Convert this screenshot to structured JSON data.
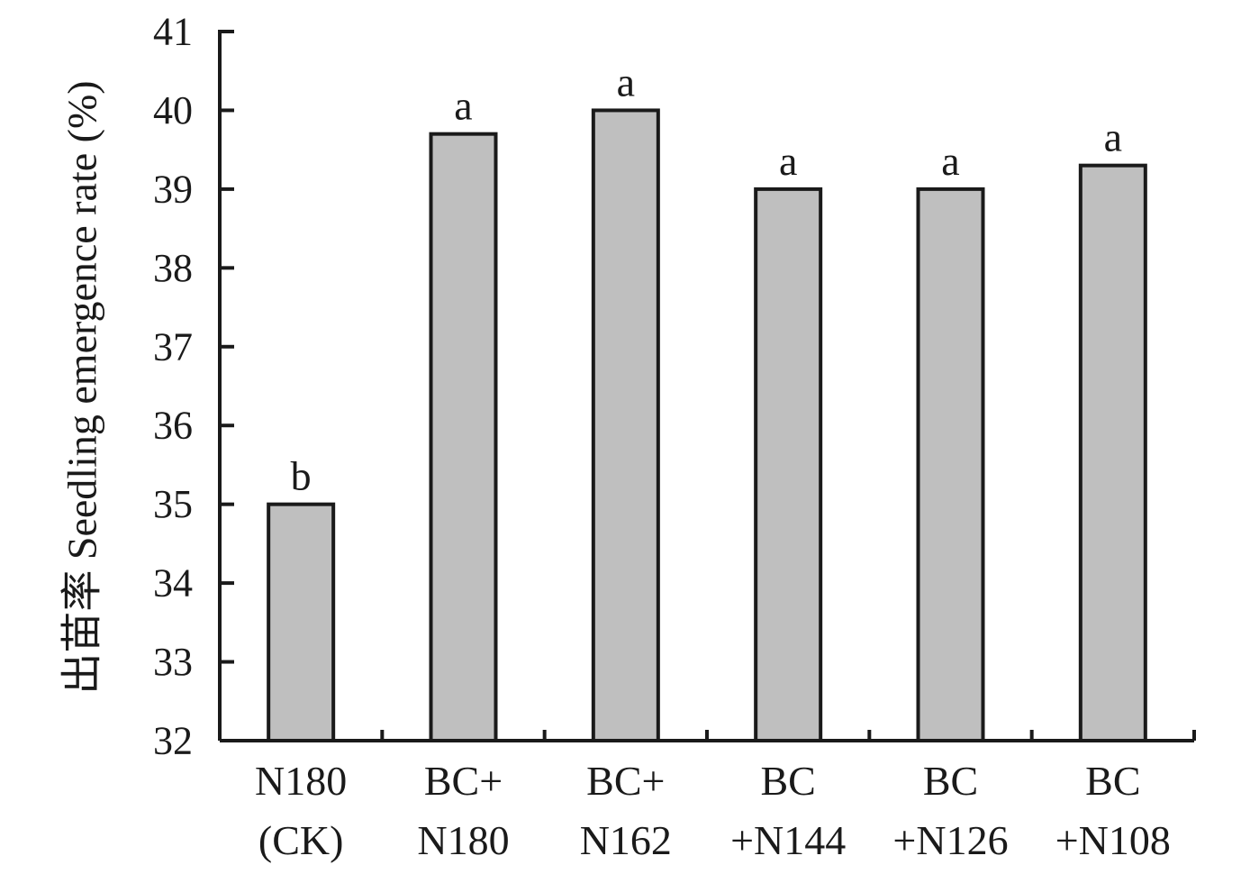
{
  "chart_data": {
    "type": "bar",
    "title": "",
    "xlabel": "",
    "ylabel": "出苗率 Seedling emergence rate (%)",
    "ylim": [
      32,
      41
    ],
    "yticks": [
      32,
      33,
      34,
      35,
      36,
      37,
      38,
      39,
      40,
      41
    ],
    "grid": false,
    "categories": [
      [
        "N180",
        "(CK)"
      ],
      [
        "BC+",
        "N180"
      ],
      [
        "BC+",
        "N162"
      ],
      [
        "BC",
        "+N144"
      ],
      [
        "BC",
        "+N126"
      ],
      [
        "BC",
        "+N108"
      ]
    ],
    "values": [
      35.0,
      39.7,
      40.0,
      39.0,
      39.0,
      39.3
    ],
    "significance": [
      "b",
      "a",
      "a",
      "a",
      "a",
      "a"
    ],
    "colors": {
      "bar_fill": "#bfbfbf",
      "bar_edge": "#1a1a1a",
      "axis": "#1a1a1a"
    }
  }
}
